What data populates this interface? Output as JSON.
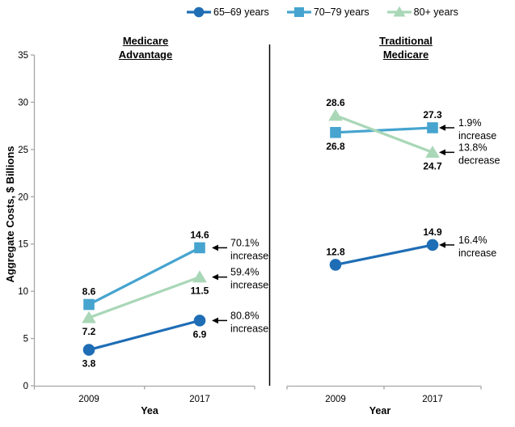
{
  "legend": {
    "items": [
      {
        "label": "65–69 years",
        "marker": "circle",
        "color": "#1F6DB5"
      },
      {
        "label": "70–79 years",
        "marker": "square",
        "color": "#46A4CF"
      },
      {
        "label": "80+ years",
        "marker": "triangle",
        "color": "#A9D7B7"
      }
    ]
  },
  "colors": {
    "axis": "#A6A6A6",
    "divider": "#000000",
    "text": "#000000"
  },
  "chart_data": {
    "type": "line",
    "ylabel": "Aggregate Costs, $ Billions",
    "ylim": [
      0,
      35
    ],
    "yticks": [
      0,
      5,
      10,
      15,
      20,
      25,
      30,
      35
    ],
    "categories": [
      "2009",
      "2017"
    ],
    "grid": false,
    "legend_position": "top",
    "panels": [
      {
        "title_lines": [
          "Medicare",
          "Advantage"
        ],
        "xlabel": "Yea",
        "series": [
          {
            "name": "65–69 years",
            "marker": "circle",
            "color": "#1F6DB5",
            "values": [
              3.8,
              6.9
            ],
            "label_pos": [
              "below",
              "below"
            ],
            "annotation": [
              "80.8%",
              "increase"
            ]
          },
          {
            "name": "70–79 years",
            "marker": "square",
            "color": "#46A4CF",
            "values": [
              8.6,
              14.6
            ],
            "label_pos": [
              "above",
              "above"
            ],
            "annotation": [
              "70.1%",
              "increase"
            ]
          },
          {
            "name": "80+ years",
            "marker": "triangle",
            "color": "#A9D7B7",
            "values": [
              7.2,
              11.5
            ],
            "label_pos": [
              "below",
              "below"
            ],
            "annotation": [
              "59.4%",
              "increase"
            ]
          }
        ]
      },
      {
        "title_lines": [
          "Traditional",
          "Medicare"
        ],
        "xlabel": "Year",
        "series": [
          {
            "name": "65–69 years",
            "marker": "circle",
            "color": "#1F6DB5",
            "values": [
              12.8,
              14.9
            ],
            "label_pos": [
              "above",
              "above"
            ],
            "annotation": [
              "16.4%",
              "increase"
            ]
          },
          {
            "name": "70–79 years",
            "marker": "square",
            "color": "#46A4CF",
            "values": [
              26.8,
              27.3
            ],
            "label_pos": [
              "below",
              "above"
            ],
            "annotation": [
              "1.9%",
              "increase"
            ]
          },
          {
            "name": "80+ years",
            "marker": "triangle",
            "color": "#A9D7B7",
            "values": [
              28.6,
              24.7
            ],
            "label_pos": [
              "above",
              "below"
            ],
            "annotation": [
              "13.8%",
              "decrease"
            ]
          }
        ]
      }
    ]
  }
}
